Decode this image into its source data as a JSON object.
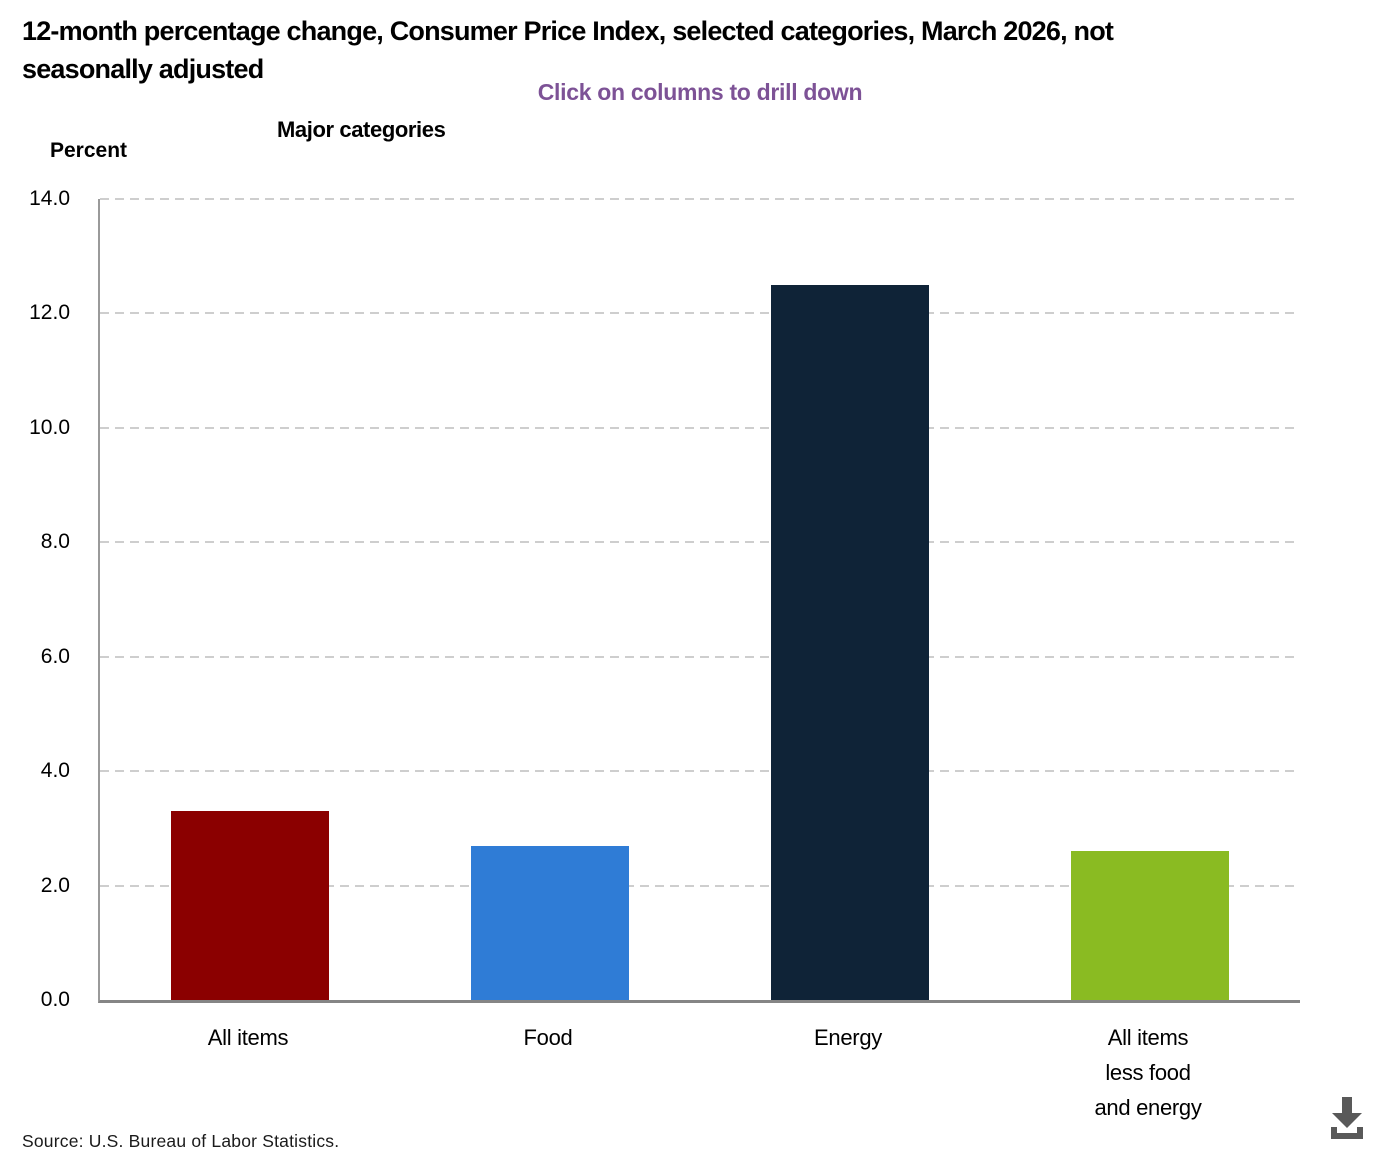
{
  "header": {
    "title_lines": [
      "12-month percentage change, Consumer Price Index, selected categories, March 2026, not",
      "seasonally adjusted"
    ],
    "hint": "Click on columns to drill down",
    "hint_color": "#7D5296"
  },
  "chart_data": {
    "type": "bar",
    "title": "Major categories",
    "ylabel": "Percent",
    "xlabel": "",
    "categories": [
      "All items",
      "Food",
      "Energy",
      "All items less food and energy"
    ],
    "values": [
      3.3,
      2.7,
      12.5,
      2.6
    ],
    "bars": [
      {
        "label": "All items",
        "value": 3.3,
        "color": "#8B0000"
      },
      {
        "label": "Food",
        "value": 2.7,
        "color": "#2F7CD6"
      },
      {
        "label": "Energy",
        "value": 12.5,
        "color": "#0F2337"
      },
      {
        "label": "All items\nless food\nand energy",
        "value": 2.6,
        "color": "#8ABB22"
      }
    ],
    "ylim": [
      0,
      14
    ],
    "y_tick_step": 2,
    "y_ticks": [
      "14.0",
      "12.0",
      "10.0",
      "8.0",
      "6.0",
      "4.0",
      "2.0",
      "0.0"
    ],
    "grid": "horizontal-dashed",
    "legend": "none",
    "colors": {
      "gridline": "#CECECE",
      "y_axis_line": "#9A9A9A",
      "x_axis_line": "#858585",
      "download_icon": "#595959"
    }
  },
  "footer": {
    "source": "Source: U.S. Bureau of Labor Statistics.",
    "icons": {
      "download": "download-icon"
    }
  }
}
